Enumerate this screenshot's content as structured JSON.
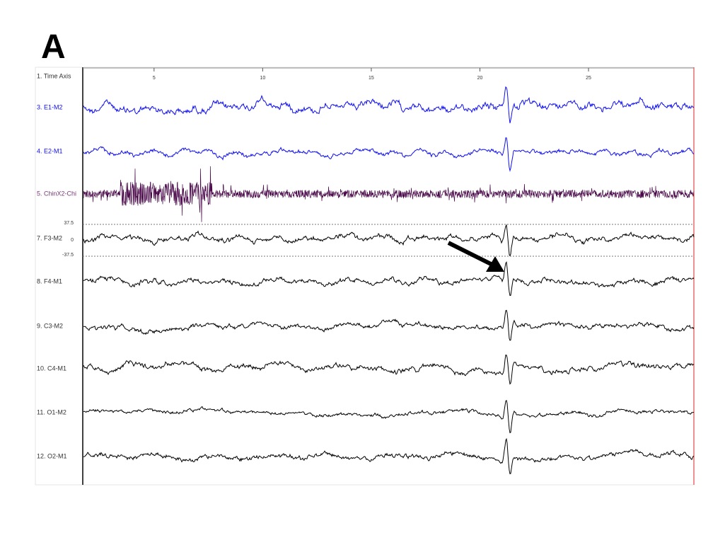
{
  "panel_label": "A",
  "time_axis": {
    "label": "1. Time Axis",
    "xlim": [
      1.75,
      29.85
    ],
    "ticks": [
      5,
      10,
      15,
      20,
      25
    ]
  },
  "channels": [
    {
      "label": "3. E1-M2",
      "color": "#1010f0"
    },
    {
      "label": "4. E2-M1",
      "color": "#1010f0"
    },
    {
      "label": "5. ChinX2-Chi",
      "color": "#4a0a4a"
    },
    {
      "label": "7. F3-M2",
      "color": "#000000"
    },
    {
      "label": "8. F4-M1",
      "color": "#000000"
    },
    {
      "label": "9. C3-M2",
      "color": "#000000"
    },
    {
      "label": "10. C4-M1",
      "color": "#000000"
    },
    {
      "label": "11. O1-M2",
      "color": "#000000"
    },
    {
      "label": "12. O2-M1",
      "color": "#000000"
    }
  ],
  "scale": {
    "top": "37.5",
    "zero": "0",
    "bottom": "-37.5"
  }
}
